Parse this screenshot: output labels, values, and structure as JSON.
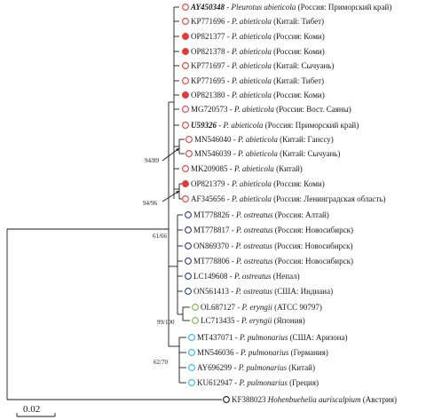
{
  "scale_bar": {
    "label": "0.02"
  },
  "markers": {
    "red_open": {
      "stroke": "#e53935",
      "fill": "none"
    },
    "red_filled": {
      "stroke": "#e53935",
      "fill": "#e53935"
    },
    "navy_open": {
      "stroke": "#2e3a87",
      "fill": "none"
    },
    "green_open": {
      "stroke": "#7cb342",
      "fill": "none"
    },
    "cyan_open": {
      "stroke": "#29b6f6",
      "fill": "none"
    },
    "black_open": {
      "stroke": "#1a1a1a",
      "fill": "none"
    }
  },
  "support_values": [
    {
      "id": "s1",
      "text": "94/89"
    },
    {
      "id": "s2",
      "text": "94/96"
    },
    {
      "id": "s3",
      "text": "61/66"
    },
    {
      "id": "s4",
      "text": "99/100"
    },
    {
      "id": "s5",
      "text": "62/70"
    }
  ],
  "leaves": [
    {
      "acc": "AY450348",
      "sep": " - ",
      "sp": "Pleurotus abieticola",
      "loc": " (Россия: Приморский край)",
      "marker": "red_open",
      "bold": true
    },
    {
      "acc": "KP771696",
      "sep": " - ",
      "sp": "P. abieticola",
      "loc": " (Китай: Тибет)",
      "marker": "red_open"
    },
    {
      "acc": "OP821377",
      "sep": " - ",
      "sp": "P. abieticola",
      "loc": " (Россия: Коми)",
      "marker": "red_filled"
    },
    {
      "acc": "OP821378",
      "sep": " - ",
      "sp": "P. abieticola",
      "loc": " (Россия: Коми)",
      "marker": "red_filled"
    },
    {
      "acc": "KP771697",
      "sep": " - ",
      "sp": "P. abieticola",
      "loc": " (Китай: Сычуань)",
      "marker": "red_open"
    },
    {
      "acc": "KP771695",
      "sep": " - ",
      "sp": "P. abieticola",
      "loc": " (Китай: Тибет)",
      "marker": "red_open"
    },
    {
      "acc": "OP821380",
      "sep": " - ",
      "sp": "P. abieticola",
      "loc": " (Россия: Коми)",
      "marker": "red_filled"
    },
    {
      "acc": "MG720573",
      "sep": " - ",
      "sp": "P. abieticola",
      "loc": " (Россия: Вост. Саяны)",
      "marker": "red_open"
    },
    {
      "acc": "U59326",
      "sep": " - ",
      "sp": "P. abieticola",
      "loc": " (Россия: Приморский край)",
      "marker": "red_open",
      "bold": true
    },
    {
      "acc": "MN546040",
      "sep": " - ",
      "sp": "P. abieticola",
      "loc": " (Китай: Ганссу)",
      "marker": "red_open"
    },
    {
      "acc": "MN546039",
      "sep": " - ",
      "sp": "P. abieticola",
      "loc": " (Китай: Сычуань)",
      "marker": "red_open"
    },
    {
      "acc": "MK209085",
      "sep": " - ",
      "sp": "P. abieticola",
      "loc": " (Китай)",
      "marker": "red_open"
    },
    {
      "acc": "OP821379",
      "sep": " - ",
      "sp": "P. abieticola",
      "loc": " (Россия: Коми)",
      "marker": "red_filled"
    },
    {
      "acc": "AF345656",
      "sep": " - ",
      "sp": "P. abieticola",
      "loc": " (Россия: Ленинградская область)",
      "marker": "red_open"
    },
    {
      "acc": "MT778826",
      "sep": " - ",
      "sp": "P. ostreatus",
      "loc": " (Россия: Алтай)",
      "marker": "navy_open"
    },
    {
      "acc": "MT778817",
      "sep": " - ",
      "sp": "P. ostreatus",
      "loc": " (Россия: Новосибирск)",
      "marker": "navy_open"
    },
    {
      "acc": "ON869370",
      "sep": " - ",
      "sp": "P. ostreatus",
      "loc": " (Россия: Новосибирск)",
      "marker": "navy_open"
    },
    {
      "acc": "MT778806",
      "sep": " - ",
      "sp": "P. ostreatus",
      "loc": " (Россия: Новосибирск)",
      "marker": "navy_open"
    },
    {
      "acc": "LC149608",
      "sep": " - ",
      "sp": "P. ostreatus",
      "loc": " (Непал)",
      "marker": "navy_open"
    },
    {
      "acc": "ON561413",
      "sep": " - ",
      "sp": "P. ostreatus",
      "loc": " (США: Индиана)",
      "marker": "navy_open"
    },
    {
      "acc": "OL687127",
      "sep": " - ",
      "sp": "P. eryngii",
      "loc": " (ATCC 90797)",
      "marker": "green_open"
    },
    {
      "acc": "LC713435",
      "sep": " - ",
      "sp": "P. eryngii",
      "loc": " (Япония)",
      "marker": "green_open"
    },
    {
      "acc": "MT437071",
      "sep": " - ",
      "sp": "P. pulmonarius",
      "loc": " (США: Аризона)",
      "marker": "cyan_open"
    },
    {
      "acc": "MN546036",
      "sep": " - ",
      "sp": "P. pulmonarius",
      "loc": " (Германия)",
      "marker": "cyan_open"
    },
    {
      "acc": "AY696299",
      "sep": " - ",
      "sp": "P. pulmonarius",
      "loc": " (Китай)",
      "marker": "cyan_open"
    },
    {
      "acc": "KU612947",
      "sep": " - ",
      "sp": "P. pulmonarius",
      "loc": " (Греция)",
      "marker": "cyan_open"
    },
    {
      "acc": "KF388023",
      "sep": " ",
      "sp": "Hohenbuehelia auriscalpium",
      "loc": " (Австрия)",
      "marker": "black_open"
    }
  ]
}
